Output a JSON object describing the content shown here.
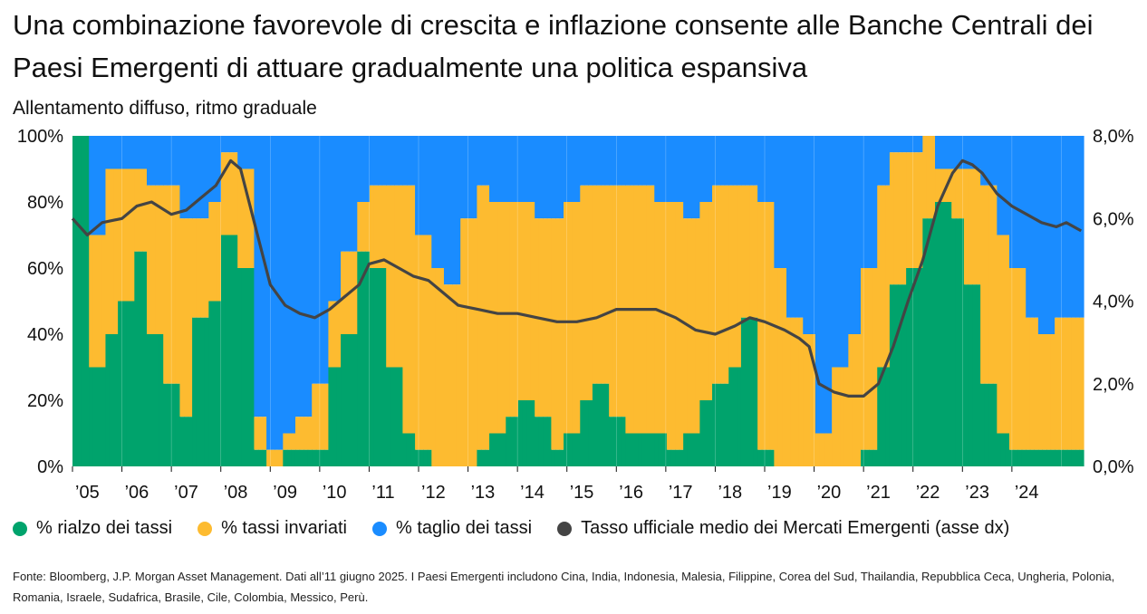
{
  "title": "Una combinazione favorevole di crescita e inflazione consente alle Banche Centrali dei Paesi Emergenti di attuare gradualmente una politica espansiva",
  "subtitle": "Allentamento diffuso, ritmo graduale",
  "footnote": "Fonte: Bloomberg, J.P. Morgan Asset Management. Dati all’11 giugno 2025. I Paesi Emergenti includono Cina, India, Indonesia, Malesia, Filippine, Corea del Sud, Thailandia, Repubblica Ceca, Ungheria, Polonia, Romania, Israele, Sudafrica, Brasile, Cile, Colombia, Messico, Perù.",
  "colors": {
    "hike": "#00a36c",
    "unchanged": "#fdbb30",
    "cut": "#1a8cff",
    "rate_line": "#444444"
  },
  "legend": [
    {
      "label": "% rialzo dei tassi",
      "color": "#00a36c"
    },
    {
      "label": "% tassi invariati",
      "color": "#fdbb30"
    },
    {
      "label": "% taglio dei tassi",
      "color": "#1a8cff"
    },
    {
      "label": "Tasso ufficiale medio dei Mercati Emergenti (asse dx)",
      "color": "#444444"
    }
  ],
  "chart_data": {
    "type": "area",
    "x_range": [
      "2005-01",
      "2025-06"
    ],
    "x_tick_labels": [
      "’05",
      "’06",
      "’07",
      "’08",
      "’09",
      "’10",
      "’11",
      "’12",
      "’13",
      "’14",
      "’15",
      "’16",
      "’17",
      "’18",
      "’19",
      "’20",
      "’21",
      "’22",
      "’23",
      "’24"
    ],
    "y_left": {
      "ticks": [
        "0%",
        "20%",
        "40%",
        "60%",
        "80%",
        "100%"
      ],
      "range": [
        0,
        100
      ]
    },
    "y_right": {
      "ticks": [
        "0,0%",
        "2,0%",
        "4,0%",
        "6,0%",
        "8,0%"
      ],
      "range": [
        0,
        8
      ]
    },
    "grid": false,
    "legend_position": "bottom",
    "hike_share_pct": {
      "x": [
        2005.0,
        2005.3,
        2005.6,
        2005.9,
        2006.2,
        2006.5,
        2006.8,
        2007.1,
        2007.4,
        2007.7,
        2008.0,
        2008.3,
        2008.6,
        2008.9,
        2009.2,
        2009.5,
        2009.8,
        2010.1,
        2010.4,
        2010.7,
        2011.0,
        2011.3,
        2011.6,
        2011.9,
        2012.2,
        2012.5,
        2012.8,
        2013.1,
        2013.4,
        2013.7,
        2014.0,
        2014.3,
        2014.6,
        2014.9,
        2015.2,
        2015.5,
        2015.8,
        2016.1,
        2016.4,
        2016.7,
        2017.0,
        2017.3,
        2017.6,
        2017.9,
        2018.2,
        2018.5,
        2018.8,
        2019.1,
        2019.4,
        2019.7,
        2020.0,
        2020.3,
        2020.6,
        2020.9,
        2021.2,
        2021.5,
        2021.8,
        2022.1,
        2022.4,
        2022.7,
        2023.0,
        2023.3,
        2023.6,
        2023.9,
        2024.2,
        2024.5,
        2024.8,
        2025.0,
        2025.4
      ],
      "values": [
        100,
        30,
        40,
        50,
        65,
        40,
        25,
        15,
        45,
        50,
        70,
        60,
        5,
        0,
        5,
        5,
        5,
        30,
        40,
        65,
        60,
        30,
        10,
        5,
        0,
        0,
        0,
        5,
        10,
        15,
        20,
        15,
        5,
        10,
        20,
        25,
        15,
        10,
        10,
        10,
        5,
        10,
        20,
        25,
        30,
        45,
        5,
        0,
        0,
        0,
        0,
        0,
        0,
        5,
        30,
        55,
        60,
        75,
        80,
        75,
        55,
        25,
        10,
        5,
        5,
        5,
        5,
        5,
        5
      ]
    },
    "unchanged_share_pct": {
      "x": [
        2005.0,
        2005.3,
        2005.6,
        2005.9,
        2006.2,
        2006.5,
        2006.8,
        2007.1,
        2007.4,
        2007.7,
        2008.0,
        2008.3,
        2008.6,
        2008.9,
        2009.2,
        2009.5,
        2009.8,
        2010.1,
        2010.4,
        2010.7,
        2011.0,
        2011.3,
        2011.6,
        2011.9,
        2012.2,
        2012.5,
        2012.8,
        2013.1,
        2013.4,
        2013.7,
        2014.0,
        2014.3,
        2014.6,
        2014.9,
        2015.2,
        2015.5,
        2015.8,
        2016.1,
        2016.4,
        2016.7,
        2017.0,
        2017.3,
        2017.6,
        2017.9,
        2018.2,
        2018.5,
        2018.8,
        2019.1,
        2019.4,
        2019.7,
        2020.0,
        2020.3,
        2020.6,
        2020.9,
        2021.2,
        2021.5,
        2021.8,
        2022.1,
        2022.4,
        2022.7,
        2023.0,
        2023.3,
        2023.6,
        2023.9,
        2024.2,
        2024.5,
        2024.8,
        2025.0,
        2025.4
      ],
      "values": [
        0,
        40,
        50,
        40,
        25,
        45,
        60,
        60,
        30,
        30,
        25,
        30,
        10,
        5,
        5,
        10,
        20,
        20,
        25,
        15,
        25,
        55,
        75,
        65,
        60,
        55,
        75,
        80,
        70,
        65,
        60,
        60,
        70,
        70,
        65,
        60,
        70,
        75,
        75,
        70,
        75,
        65,
        60,
        60,
        55,
        40,
        75,
        60,
        45,
        40,
        10,
        30,
        40,
        55,
        55,
        40,
        35,
        25,
        10,
        15,
        35,
        60,
        60,
        55,
        40,
        35,
        40,
        40,
        40
      ]
    },
    "cut_share_pct": "remainder to 100%",
    "rate_series": {
      "name": "Tasso ufficiale medio dei Mercati Emergenti (asse dx)",
      "x": [
        2005.0,
        2005.3,
        2005.6,
        2006.0,
        2006.3,
        2006.6,
        2007.0,
        2007.3,
        2007.6,
        2007.9,
        2008.2,
        2008.4,
        2008.7,
        2009.0,
        2009.3,
        2009.6,
        2009.9,
        2010.2,
        2010.5,
        2010.8,
        2011.0,
        2011.3,
        2011.6,
        2011.9,
        2012.2,
        2012.5,
        2012.8,
        2013.2,
        2013.6,
        2014.0,
        2014.4,
        2014.8,
        2015.2,
        2015.6,
        2016.0,
        2016.4,
        2016.8,
        2017.2,
        2017.6,
        2018.0,
        2018.4,
        2018.7,
        2019.0,
        2019.4,
        2019.7,
        2019.9,
        2020.1,
        2020.4,
        2020.7,
        2021.0,
        2021.3,
        2021.6,
        2021.9,
        2022.2,
        2022.5,
        2022.8,
        2023.0,
        2023.2,
        2023.4,
        2023.7,
        2024.0,
        2024.3,
        2024.6,
        2024.9,
        2025.1,
        2025.4
      ],
      "values": [
        6.0,
        5.6,
        5.9,
        6.0,
        6.3,
        6.4,
        6.1,
        6.2,
        6.5,
        6.8,
        7.4,
        7.2,
        5.8,
        4.4,
        3.9,
        3.7,
        3.6,
        3.8,
        4.1,
        4.4,
        4.9,
        5.0,
        4.8,
        4.6,
        4.5,
        4.2,
        3.9,
        3.8,
        3.7,
        3.7,
        3.6,
        3.5,
        3.5,
        3.6,
        3.8,
        3.8,
        3.8,
        3.6,
        3.3,
        3.2,
        3.4,
        3.6,
        3.5,
        3.3,
        3.1,
        2.9,
        2.0,
        1.8,
        1.7,
        1.7,
        2.0,
        2.9,
        4.0,
        5.0,
        6.3,
        7.1,
        7.4,
        7.3,
        7.1,
        6.6,
        6.3,
        6.1,
        5.9,
        5.8,
        5.9,
        5.7
      ]
    }
  }
}
